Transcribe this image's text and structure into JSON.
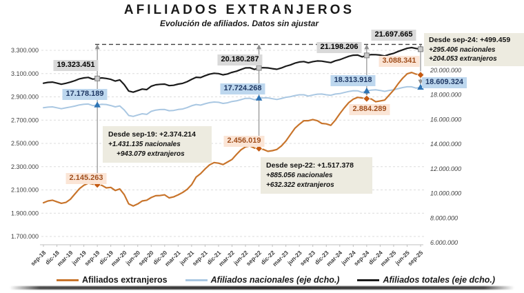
{
  "title": "AFILIADOS EXTRANJEROS",
  "subtitle": "Evolución de afiliados. Datos sin ajustar",
  "colors": {
    "extranjeros_line": "#C8742B",
    "extranjeros_marker": "#C55A11",
    "nacionales_line": "#A9C7E2",
    "nacionales_marker": "#2E74B5",
    "totales_line": "#1A1A1A",
    "totales_marker": "#C9C9C9",
    "label_bg_gray": "#D9D9D9",
    "label_bg_blue": "#BDD7EE",
    "label_bg_peach": "#FBE5D6",
    "callout_bg": "#EDEBE0",
    "connector": "#8F8F8F"
  },
  "annotations": {
    "sep19": {
      "total": "19.323.451",
      "nacionales": "17.178.189",
      "extranjeros": "2.145.263",
      "box_title": "Desde sep-19: +2.374.214",
      "box_line2": "+1.431.135 nacionales",
      "box_line3": "+943.079 extranjeros"
    },
    "sep22": {
      "total": "20.180.287",
      "nacionales": "17.724.268",
      "extranjeros": "2.456.019",
      "box_title": "Desde sep-22: +1.517.378",
      "box_line2": "+885.056 nacionales",
      "box_line3": "+632.322 extranjeros"
    },
    "sep24": {
      "total": "21.198.206",
      "nacionales": "18.313.918",
      "extranjeros": "2.884.289",
      "box_title": "Desde sep-24: +499.459",
      "box_line2": "+295.406 nacionales",
      "box_line3": "+204.053 extranjeros"
    },
    "sep25": {
      "total": "21.697.665",
      "nacionales": "18.609.324",
      "extranjeros": "3.088.341"
    }
  },
  "legend": {
    "items": [
      {
        "label": "Afiliados extranjeros",
        "italic": false
      },
      {
        "label": "Afiliados nacionales (eje dcho.)",
        "italic": true
      },
      {
        "label": "Afiliados totales (eje dcho.)",
        "italic": true
      }
    ]
  },
  "chart_data": {
    "type": "line",
    "x_unit": "month",
    "x_start": "sep-18",
    "x_end": "sep-25",
    "grid": "dashed-horizontal",
    "legend_position": "bottom",
    "x_tick_labels": [
      "sep-18",
      "dic-18",
      "mar-19",
      "jun-19",
      "sep-19",
      "dic-19",
      "mar-20",
      "jun-20",
      "sep-20",
      "dic-20",
      "mar-21",
      "jun-21",
      "sep-21",
      "dic-21",
      "mar-22",
      "jun-22",
      "sep-22",
      "dic-22",
      "mar-23",
      "jun-23",
      "sep-23",
      "dic-23",
      "mar-24",
      "jun-24",
      "sep-24",
      "dic-24",
      "mar-25",
      "jun-25",
      "sep-25"
    ],
    "left_axis": {
      "min": 1700000,
      "max": 3300000,
      "tick_step": 200000,
      "tick_labels": [
        "3.300.000",
        "3.100.000",
        "2.900.000",
        "2.700.000",
        "2.500.000",
        "2.300.000",
        "2.100.000",
        "1.900.000",
        "1.700.000"
      ]
    },
    "right_axis": {
      "min": 6000000,
      "max": 22000000,
      "tick_step": 2000000,
      "tick_labels": [
        "20.000.000",
        "18.000.000",
        "16.000.000",
        "14.000.000",
        "12.000.000",
        "10.000.000",
        "8.000.000",
        "6.000.000"
      ]
    },
    "reference_line_value": 21697665,
    "highlight_months": [
      {
        "label": "sep-19",
        "index": 12
      },
      {
        "label": "sep-22",
        "index": 48
      },
      {
        "label": "sep-24",
        "index": 72
      },
      {
        "label": "sep-25",
        "index": 84
      }
    ],
    "series": [
      {
        "name": "Afiliados extranjeros",
        "axis": "left",
        "color": "#C8742B",
        "values": [
          1990000,
          2005000,
          2012000,
          1998000,
          1985000,
          1993000,
          2020000,
          2065000,
          2110000,
          2140000,
          2158000,
          2150000,
          2145263,
          2140000,
          2118000,
          2122000,
          2095000,
          2108000,
          2060000,
          1980000,
          1962000,
          1980000,
          2005000,
          2012000,
          2035000,
          2050000,
          2052000,
          2058000,
          2032000,
          2040000,
          2058000,
          2078000,
          2105000,
          2145000,
          2210000,
          2240000,
          2280000,
          2315000,
          2335000,
          2330000,
          2318000,
          2340000,
          2362000,
          2405000,
          2445000,
          2470000,
          2478000,
          2460000,
          2456019,
          2448000,
          2432000,
          2438000,
          2448000,
          2478000,
          2520000,
          2575000,
          2630000,
          2665000,
          2695000,
          2695000,
          2705000,
          2695000,
          2672000,
          2668000,
          2655000,
          2700000,
          2755000,
          2805000,
          2850000,
          2880000,
          2896000,
          2890000,
          2884289,
          2882000,
          2858000,
          2865000,
          2872000,
          2915000,
          2958000,
          3012000,
          3060000,
          3098000,
          3110000,
          3095000,
          3088341
        ]
      },
      {
        "name": "Afiliados nacionales (eje dcho.)",
        "axis": "right",
        "color": "#A9C7E2",
        "values": [
          16950000,
          17000000,
          17020000,
          16950000,
          16870000,
          16940000,
          17010000,
          17080000,
          17180000,
          17230000,
          17250000,
          17120000,
          17178189,
          17230000,
          17210000,
          17130000,
          17020000,
          17100000,
          16770000,
          16320000,
          16250000,
          16360000,
          16460000,
          16410000,
          16660000,
          16760000,
          16800000,
          16810000,
          16710000,
          16730000,
          16810000,
          16850000,
          16960000,
          17110000,
          17210000,
          17160000,
          17270000,
          17360000,
          17410000,
          17390000,
          17300000,
          17350000,
          17460000,
          17510000,
          17610000,
          17710000,
          17715000,
          17600000,
          17724268,
          17750000,
          17750000,
          17680000,
          17620000,
          17700000,
          17800000,
          17850000,
          17940000,
          18000000,
          18000000,
          17900000,
          17985000,
          18050000,
          18060000,
          18000000,
          17960000,
          18060000,
          18095000,
          18185000,
          18270000,
          18330000,
          18325000,
          18190000,
          18313918,
          18380000,
          18400000,
          18355000,
          18280000,
          18355000,
          18405000,
          18500000,
          18585000,
          18650000,
          18650000,
          18545000,
          18609324
        ]
      },
      {
        "name": "Afiliados totales (eje dcho.)",
        "axis": "right",
        "color": "#1A1A1A",
        "values": [
          18940000,
          19005000,
          19032000,
          18948000,
          18855000,
          18933000,
          19030000,
          19145000,
          19290000,
          19370000,
          19408000,
          19270000,
          19323451,
          19370000,
          19328000,
          19252000,
          19115000,
          19208000,
          18830000,
          18300000,
          18212000,
          18340000,
          18465000,
          18422000,
          18695000,
          18810000,
          18852000,
          18868000,
          18742000,
          18770000,
          18868000,
          18928000,
          19065000,
          19255000,
          19420000,
          19400000,
          19550000,
          19675000,
          19745000,
          19720000,
          19618000,
          19690000,
          19822000,
          19915000,
          20055000,
          20180000,
          20193000,
          20060000,
          20180287,
          20198000,
          20182000,
          20118000,
          20068000,
          20178000,
          20320000,
          20425000,
          20570000,
          20665000,
          20695000,
          20595000,
          20690000,
          20745000,
          20732000,
          20668000,
          20615000,
          20760000,
          20850000,
          20990000,
          21120000,
          21210000,
          21221000,
          21078000,
          21198206,
          21262000,
          21258000,
          21220000,
          21152000,
          21270000,
          21363000,
          21512000,
          21645000,
          21770000,
          21830000,
          21760000,
          21697665
        ]
      }
    ]
  }
}
